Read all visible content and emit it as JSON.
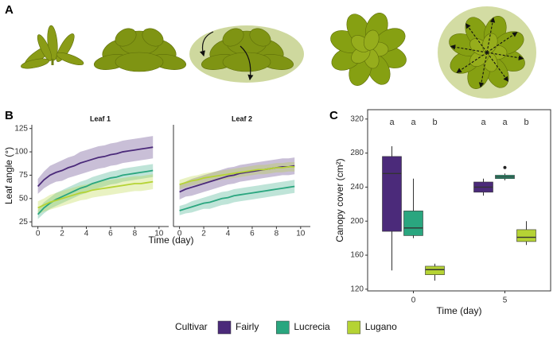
{
  "panel_labels": [
    "A",
    "B",
    "C"
  ],
  "legend_title": "Cultivar",
  "chart_data": [
    {
      "type": "line",
      "title": "Leaf 1",
      "xlabel": "Time (day)",
      "ylabel": "Leaf angle (°)",
      "xlim": [
        -0.5,
        10.8
      ],
      "ylim": [
        20,
        129
      ],
      "xticks": [
        0,
        2,
        4,
        6,
        8,
        10
      ],
      "yticks": [
        25,
        50,
        75,
        100,
        125
      ],
      "x": [
        0,
        0.5,
        1,
        1.5,
        2,
        2.5,
        3,
        3.5,
        4,
        4.5,
        5,
        5.5,
        6,
        6.5,
        7,
        7.5,
        8,
        8.5,
        9,
        9.5
      ],
      "series": [
        {
          "name": "Fairly",
          "color": "#4b2a7a",
          "values": [
            63,
            70,
            75,
            78,
            80,
            83,
            85,
            88,
            90,
            92,
            94,
            95,
            97,
            98,
            100,
            101,
            102,
            103,
            104,
            105
          ],
          "error": [
            8,
            9,
            10,
            10,
            11,
            11,
            11,
            12,
            12,
            12,
            12,
            12,
            12,
            12,
            12,
            12,
            12,
            12,
            12,
            12
          ]
        },
        {
          "name": "Lucrecia",
          "color": "#2aa67f",
          "values": [
            33,
            40,
            45,
            49,
            52,
            55,
            58,
            61,
            63,
            66,
            68,
            70,
            72,
            73,
            75,
            76,
            77,
            78,
            79,
            80
          ],
          "error": [
            5,
            6,
            6,
            7,
            7,
            7,
            7,
            7,
            7,
            7,
            7,
            7,
            7,
            7,
            7,
            7,
            7,
            7,
            7,
            7
          ]
        },
        {
          "name": "Lugano",
          "color": "#b5d334",
          "values": [
            40,
            43,
            46,
            48,
            50,
            52,
            54,
            56,
            57,
            59,
            60,
            61,
            62,
            63,
            64,
            65,
            66,
            66,
            67,
            68
          ],
          "error": [
            7,
            7,
            8,
            8,
            8,
            8,
            8,
            8,
            8,
            8,
            8,
            8,
            8,
            8,
            8,
            8,
            8,
            8,
            8,
            8
          ]
        }
      ]
    },
    {
      "type": "line",
      "title": "Leaf 2",
      "xlim": [
        -0.5,
        10.8
      ],
      "ylim": [
        20,
        129
      ],
      "xticks": [
        0,
        2,
        4,
        6,
        8,
        10
      ],
      "x": [
        0,
        0.5,
        1,
        1.5,
        2,
        2.5,
        3,
        3.5,
        4,
        4.5,
        5,
        5.5,
        6,
        6.5,
        7,
        7.5,
        8,
        8.5,
        9,
        9.5
      ],
      "series": [
        {
          "name": "Fairly",
          "color": "#4b2a7a",
          "values": [
            57,
            60,
            62,
            64,
            66,
            68,
            70,
            72,
            74,
            75,
            77,
            78,
            79,
            80,
            81,
            82,
            83,
            84,
            84,
            85
          ],
          "error": [
            8,
            8,
            9,
            9,
            9,
            9,
            9,
            9,
            9,
            9,
            9,
            9,
            9,
            9,
            9,
            9,
            9,
            9,
            9,
            9
          ]
        },
        {
          "name": "Lucrecia",
          "color": "#2aa67f",
          "values": [
            37,
            39,
            41,
            43,
            45,
            46,
            48,
            50,
            51,
            53,
            54,
            55,
            56,
            57,
            58,
            59,
            60,
            61,
            62,
            63
          ],
          "error": [
            5,
            5,
            6,
            6,
            6,
            7,
            7,
            7,
            7,
            7,
            7,
            7,
            7,
            7,
            7,
            7,
            7,
            7,
            7,
            7
          ]
        },
        {
          "name": "Lugano",
          "color": "#b5d334",
          "values": [
            65,
            67,
            69,
            70,
            72,
            73,
            74,
            75,
            76,
            77,
            78,
            79,
            80,
            81,
            81,
            82,
            83,
            83,
            84,
            84
          ],
          "error": [
            5,
            5,
            5,
            5,
            5,
            5,
            5,
            5,
            5,
            5,
            5,
            5,
            5,
            5,
            5,
            5,
            5,
            5,
            5,
            5
          ]
        }
      ]
    },
    {
      "type": "box",
      "xlabel": "Time (day)",
      "ylabel": "Canopy cover (cm²)",
      "categories": [
        "0",
        "5"
      ],
      "ylim": [
        118,
        331
      ],
      "yticks": [
        120,
        160,
        200,
        240,
        280,
        320
      ],
      "series": [
        {
          "name": "Fairly",
          "color": "#4b2a7a",
          "min": [
            142,
            230
          ],
          "q1": [
            188,
            234
          ],
          "median": [
            256,
            240
          ],
          "q3": [
            276,
            246
          ],
          "max": [
            288,
            250
          ],
          "outliers": [
            null,
            null
          ],
          "letters": [
            "a",
            "a"
          ]
        },
        {
          "name": "Lucrecia",
          "color": "#2aa67f",
          "min": [
            180,
            248
          ],
          "q1": [
            183,
            250
          ],
          "median": [
            192,
            252
          ],
          "q3": [
            212,
            254
          ],
          "max": [
            250,
            256
          ],
          "outliers": [
            null,
            263
          ],
          "letters": [
            "a",
            "a"
          ]
        },
        {
          "name": "Lugano",
          "color": "#b5d334",
          "min": [
            130,
            172
          ],
          "q1": [
            137,
            176
          ],
          "median": [
            143,
            181
          ],
          "q3": [
            147,
            190
          ],
          "max": [
            150,
            200
          ],
          "outliers": [
            null,
            null
          ],
          "letters": [
            "b",
            "b"
          ]
        }
      ]
    }
  ]
}
